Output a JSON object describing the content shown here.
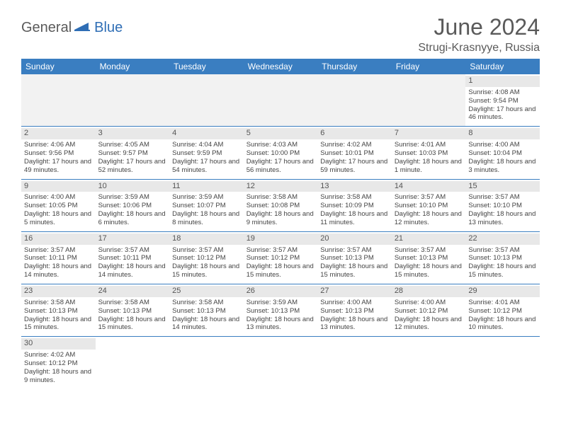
{
  "logo": {
    "general": "General",
    "blue": "Blue"
  },
  "title": "June 2024",
  "location": "Strugi-Krasnyye, Russia",
  "colors": {
    "header_bg": "#3a7ec1",
    "header_text": "#ffffff",
    "daynum_bg": "#e8e8e8",
    "border": "#3a7ec1",
    "text": "#444444",
    "title_text": "#5a5a5a"
  },
  "day_headers": [
    "Sunday",
    "Monday",
    "Tuesday",
    "Wednesday",
    "Thursday",
    "Friday",
    "Saturday"
  ],
  "weeks": [
    [
      null,
      null,
      null,
      null,
      null,
      null,
      {
        "n": "1",
        "sr": "4:08 AM",
        "ss": "9:54 PM",
        "dl": "17 hours and 46 minutes."
      }
    ],
    [
      {
        "n": "2",
        "sr": "4:06 AM",
        "ss": "9:56 PM",
        "dl": "17 hours and 49 minutes."
      },
      {
        "n": "3",
        "sr": "4:05 AM",
        "ss": "9:57 PM",
        "dl": "17 hours and 52 minutes."
      },
      {
        "n": "4",
        "sr": "4:04 AM",
        "ss": "9:59 PM",
        "dl": "17 hours and 54 minutes."
      },
      {
        "n": "5",
        "sr": "4:03 AM",
        "ss": "10:00 PM",
        "dl": "17 hours and 56 minutes."
      },
      {
        "n": "6",
        "sr": "4:02 AM",
        "ss": "10:01 PM",
        "dl": "17 hours and 59 minutes."
      },
      {
        "n": "7",
        "sr": "4:01 AM",
        "ss": "10:03 PM",
        "dl": "18 hours and 1 minute."
      },
      {
        "n": "8",
        "sr": "4:00 AM",
        "ss": "10:04 PM",
        "dl": "18 hours and 3 minutes."
      }
    ],
    [
      {
        "n": "9",
        "sr": "4:00 AM",
        "ss": "10:05 PM",
        "dl": "18 hours and 5 minutes."
      },
      {
        "n": "10",
        "sr": "3:59 AM",
        "ss": "10:06 PM",
        "dl": "18 hours and 6 minutes."
      },
      {
        "n": "11",
        "sr": "3:59 AM",
        "ss": "10:07 PM",
        "dl": "18 hours and 8 minutes."
      },
      {
        "n": "12",
        "sr": "3:58 AM",
        "ss": "10:08 PM",
        "dl": "18 hours and 9 minutes."
      },
      {
        "n": "13",
        "sr": "3:58 AM",
        "ss": "10:09 PM",
        "dl": "18 hours and 11 minutes."
      },
      {
        "n": "14",
        "sr": "3:57 AM",
        "ss": "10:10 PM",
        "dl": "18 hours and 12 minutes."
      },
      {
        "n": "15",
        "sr": "3:57 AM",
        "ss": "10:10 PM",
        "dl": "18 hours and 13 minutes."
      }
    ],
    [
      {
        "n": "16",
        "sr": "3:57 AM",
        "ss": "10:11 PM",
        "dl": "18 hours and 14 minutes."
      },
      {
        "n": "17",
        "sr": "3:57 AM",
        "ss": "10:11 PM",
        "dl": "18 hours and 14 minutes."
      },
      {
        "n": "18",
        "sr": "3:57 AM",
        "ss": "10:12 PM",
        "dl": "18 hours and 15 minutes."
      },
      {
        "n": "19",
        "sr": "3:57 AM",
        "ss": "10:12 PM",
        "dl": "18 hours and 15 minutes."
      },
      {
        "n": "20",
        "sr": "3:57 AM",
        "ss": "10:13 PM",
        "dl": "18 hours and 15 minutes."
      },
      {
        "n": "21",
        "sr": "3:57 AM",
        "ss": "10:13 PM",
        "dl": "18 hours and 15 minutes."
      },
      {
        "n": "22",
        "sr": "3:57 AM",
        "ss": "10:13 PM",
        "dl": "18 hours and 15 minutes."
      }
    ],
    [
      {
        "n": "23",
        "sr": "3:58 AM",
        "ss": "10:13 PM",
        "dl": "18 hours and 15 minutes."
      },
      {
        "n": "24",
        "sr": "3:58 AM",
        "ss": "10:13 PM",
        "dl": "18 hours and 15 minutes."
      },
      {
        "n": "25",
        "sr": "3:58 AM",
        "ss": "10:13 PM",
        "dl": "18 hours and 14 minutes."
      },
      {
        "n": "26",
        "sr": "3:59 AM",
        "ss": "10:13 PM",
        "dl": "18 hours and 13 minutes."
      },
      {
        "n": "27",
        "sr": "4:00 AM",
        "ss": "10:13 PM",
        "dl": "18 hours and 13 minutes."
      },
      {
        "n": "28",
        "sr": "4:00 AM",
        "ss": "10:12 PM",
        "dl": "18 hours and 12 minutes."
      },
      {
        "n": "29",
        "sr": "4:01 AM",
        "ss": "10:12 PM",
        "dl": "18 hours and 10 minutes."
      }
    ],
    [
      {
        "n": "30",
        "sr": "4:02 AM",
        "ss": "10:12 PM",
        "dl": "18 hours and 9 minutes."
      },
      null,
      null,
      null,
      null,
      null,
      null
    ]
  ],
  "labels": {
    "sunrise": "Sunrise:",
    "sunset": "Sunset:",
    "daylight": "Daylight:"
  }
}
